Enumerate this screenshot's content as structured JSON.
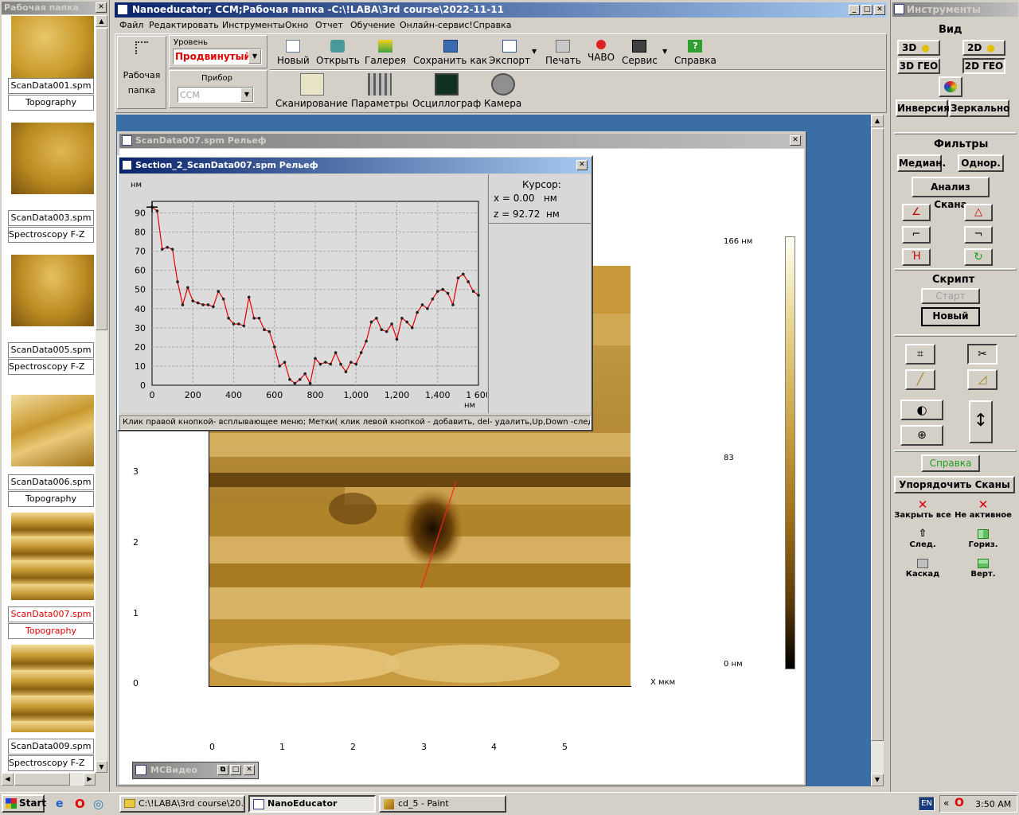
{
  "left_panel": {
    "title": "Рабочая папка",
    "items": [
      {
        "file": "ScanData001.spm",
        "mode": "Topography",
        "active": false
      },
      {
        "file": "ScanData003.spm",
        "mode": "Spectroscopy F-Z",
        "active": false
      },
      {
        "file": "ScanData005.spm",
        "mode": "Spectroscopy F-Z",
        "active": false
      },
      {
        "file": "ScanData006.spm",
        "mode": "Topography",
        "active": false
      },
      {
        "file": "ScanData007.spm",
        "mode": "Topography",
        "active": true
      },
      {
        "file": "ScanData009.spm",
        "mode": "Spectroscopy F-Z",
        "active": false
      }
    ]
  },
  "main_window": {
    "title": "Nanoeducator; CCM;Рабочая папка -C:\\!LABA\\3rd course\\2022-11-11",
    "menu": [
      "Файл",
      "Редактировать",
      "Инструменты",
      "Окно",
      "Отчет",
      "Обучение",
      "Онлайн-сервис!",
      "Справка"
    ],
    "folder_button": {
      "line1": "Рабочая",
      "line2": "папка"
    },
    "user_level": {
      "label": "Уровень пользователя",
      "value": "Продвинутый"
    },
    "device": {
      "label": "Прибор",
      "value": "CCM"
    },
    "toolbar1": [
      "Новый",
      "Открыть",
      "Галерея",
      "Сохранить как",
      "Экспорт",
      "Печать",
      "ЧАВО",
      "Сервис",
      "Справка"
    ],
    "toolbar2": [
      "Сканирование",
      "Параметры",
      "Осциллограф",
      "Камера"
    ]
  },
  "scan_window": {
    "title": "ScanData007.spm  Рельеф",
    "colorbar": {
      "max": "166 нм",
      "mid": "83",
      "min": "0 нм"
    },
    "y_ticks": [
      "3",
      "2",
      "1",
      "0"
    ],
    "x_ticks": [
      "0",
      "1",
      "2",
      "3",
      "4",
      "5"
    ],
    "x_label": "X мкм"
  },
  "section_window": {
    "title": "Section_2_ScanData007.spm  Рельеф",
    "y_unit": "нм",
    "x_unit": "нм",
    "cursor": {
      "title": "Курсор:",
      "x": "x = 0.00   нм",
      "z": "z = 92.72  нм"
    },
    "status": "Клик правой кнопкой-  всплывающее меню; Метки( клик левой кнопкой - добавить, del- удалить,Up,Down -след"
  },
  "chart_data": {
    "type": "line",
    "title": "",
    "xlabel": "нм",
    "ylabel": "нм",
    "xlim": [
      0,
      1600
    ],
    "ylim": [
      0,
      96
    ],
    "x_tick_labels": [
      "0",
      "200",
      "400",
      "600",
      "800",
      "1,000",
      "1,200",
      "1,400",
      "1 600"
    ],
    "y_tick_labels": [
      "0",
      "10",
      "20",
      "30",
      "40",
      "50",
      "60",
      "70",
      "80",
      "90"
    ],
    "series": [
      {
        "color": "#e00000",
        "x": [
          0,
          25,
          50,
          75,
          100,
          125,
          150,
          175,
          200,
          225,
          250,
          275,
          300,
          325,
          350,
          375,
          400,
          425,
          450,
          475,
          500,
          525,
          550,
          575,
          600,
          625,
          650,
          675,
          700,
          725,
          750,
          775,
          800,
          825,
          850,
          875,
          900,
          925,
          950,
          975,
          1000,
          1025,
          1050,
          1075,
          1100,
          1125,
          1150,
          1175,
          1200,
          1225,
          1250,
          1275,
          1300,
          1325,
          1350,
          1375,
          1400,
          1425,
          1450,
          1475,
          1500,
          1525,
          1550,
          1575,
          1600
        ],
        "values": [
          93,
          91,
          71,
          72,
          71,
          54,
          42,
          51,
          44,
          43,
          42,
          42,
          41,
          49,
          45,
          35,
          32,
          32,
          31,
          46,
          35,
          35,
          29,
          28,
          20,
          10,
          12,
          3,
          1,
          3,
          6,
          1,
          14,
          11,
          12,
          11,
          17,
          11,
          7,
          12,
          11,
          17,
          23,
          33,
          35,
          29,
          28,
          32,
          24,
          35,
          33,
          30,
          38,
          42,
          40,
          45,
          49,
          50,
          48,
          42,
          56,
          58,
          54,
          49,
          47
        ]
      }
    ]
  },
  "tools_panel": {
    "title": "Инструменты",
    "view": {
      "label": "Вид",
      "b3d": "3D",
      "b2d": "2D",
      "b3dgeo": "3D ГЕО",
      "b2dgeo": "2D ГЕО",
      "inversion": "Инверсия",
      "mirror": "Зеркально"
    },
    "filters": {
      "label": "Фильтры",
      "median": "Медиан.",
      "uniform": "Однор.",
      "analysis": "Анализ Скана"
    },
    "script": {
      "label": "Скрипт",
      "start": "Старт",
      "new": "Новый"
    },
    "help": "Справка",
    "arrange": {
      "label": "Упорядочить Сканы",
      "close_all": "Закрыть все",
      "not_active": "Не активное",
      "next": "След.",
      "horiz": "Гориз.",
      "cascade": "Каскад",
      "vert": "Верт."
    }
  },
  "mcvideo": {
    "title": "МСВидео"
  },
  "taskbar": {
    "start": "Start",
    "tasks": [
      "C:\\!LABA\\3rd course\\20...",
      "NanoEducator",
      "cd_5 - Paint"
    ],
    "lang": "EN",
    "time": "3:50 AM"
  }
}
